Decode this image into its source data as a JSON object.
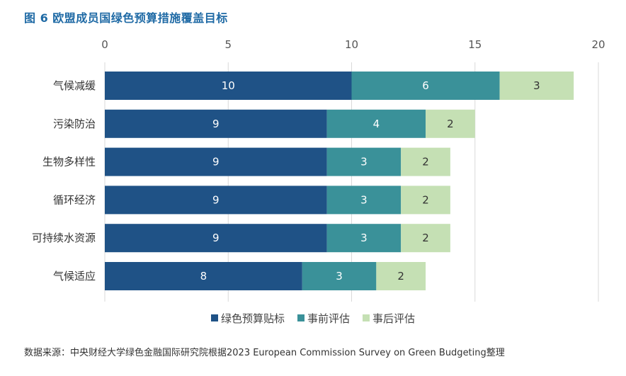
{
  "title": "图 6 欧盟成员国绿色预算措施覆盖目标",
  "source": "数据来源：中央财经大学绿色金融国际研究院根据2023 European Commission Survey on Green Budgeting整理",
  "chart_data": {
    "type": "bar",
    "orientation": "horizontal",
    "stacked": true,
    "categories": [
      "气候减缓",
      "污染防治",
      "生物多样性",
      "循环经济",
      "可持续水资源",
      "气候适应"
    ],
    "series": [
      {
        "name": "绿色预算贴标",
        "color": "#1f5286",
        "label_color": "#ffffff",
        "values": [
          10,
          9,
          9,
          9,
          9,
          8
        ]
      },
      {
        "name": "事前评估",
        "color": "#3a9199",
        "label_color": "#ffffff",
        "values": [
          6,
          4,
          3,
          3,
          3,
          3
        ]
      },
      {
        "name": "事后评估",
        "color": "#c5e0b4",
        "label_color": "#333333",
        "values": [
          3,
          2,
          2,
          2,
          2,
          2
        ]
      }
    ],
    "xlim": [
      0,
      20
    ],
    "xticks": [
      "0",
      "5",
      "10",
      "15",
      "20"
    ],
    "xaxis_position": "top",
    "grid": true,
    "legend_position": "bottom"
  }
}
